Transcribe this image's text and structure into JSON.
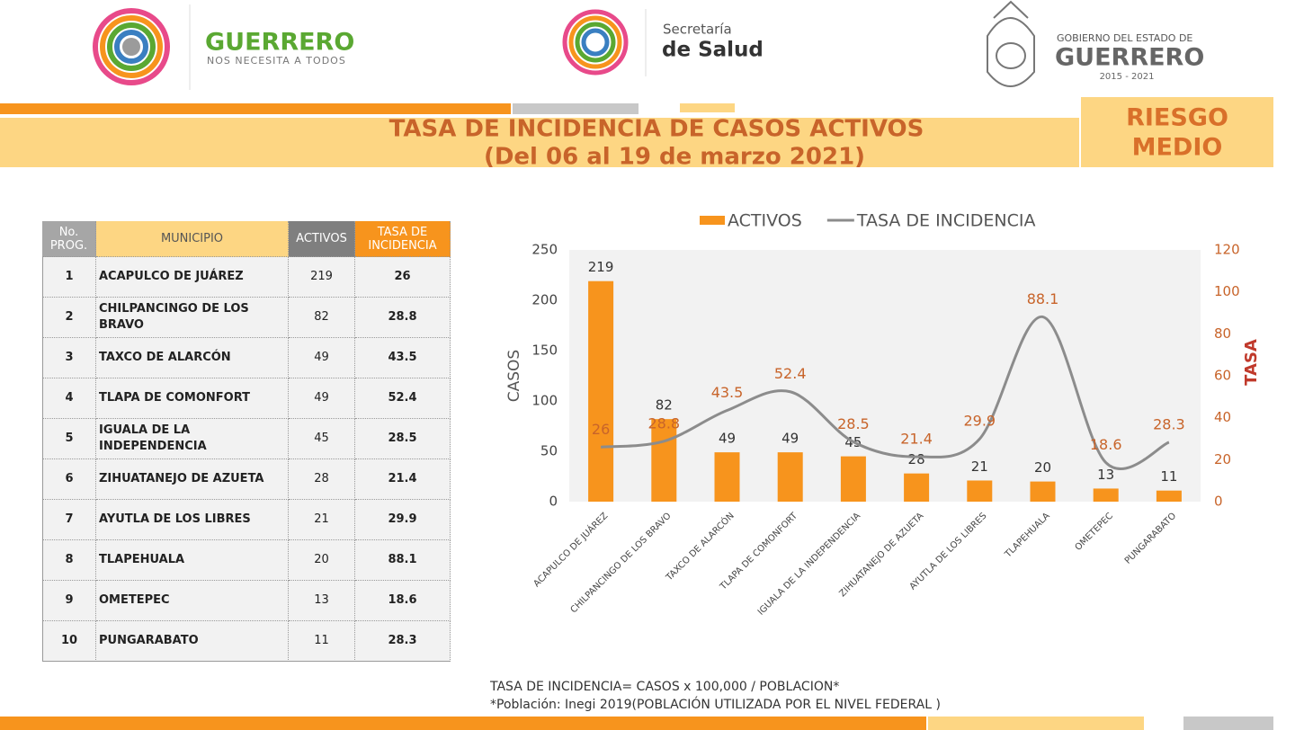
{
  "header": {
    "brand_title": "GUERRERO",
    "brand_subtitle": "NOS NECESITA A TODOS",
    "health_line1": "Secretaría",
    "health_line2": "de Salud",
    "gov_line1": "GOBIERNO DEL ESTADO DE",
    "gov_line2": "GUERRERO",
    "gov_years": "2015 - 2021"
  },
  "title": {
    "line1": "TASA DE INCIDENCIA DE CASOS ACTIVOS",
    "line2": "(Del 06 al 19 de marzo 2021)"
  },
  "risk": {
    "line1": "RIESGO",
    "line2": "MEDIO"
  },
  "table": {
    "headers": [
      "No. PROG.",
      "MUNICIPIO",
      "ACTIVOS",
      "TASA DE INCIDENCIA"
    ],
    "rows": [
      [
        1,
        "ACAPULCO DE JUÁREZ",
        219,
        26
      ],
      [
        2,
        "CHILPANCINGO DE LOS BRAVO",
        82,
        28.8
      ],
      [
        3,
        "TAXCO DE ALARCÓN",
        49,
        43.5
      ],
      [
        4,
        "TLAPA DE COMONFORT",
        49,
        52.4
      ],
      [
        5,
        "IGUALA DE LA INDEPENDENCIA",
        45,
        28.5
      ],
      [
        6,
        "ZIHUATANEJO DE AZUETA",
        28,
        21.4
      ],
      [
        7,
        "AYUTLA DE LOS LIBRES",
        21,
        29.9
      ],
      [
        8,
        "TLAPEHUALA",
        20,
        88.1
      ],
      [
        9,
        "OMETEPEC",
        13,
        18.6
      ],
      [
        10,
        "PUNGARABATO",
        11,
        28.3
      ]
    ]
  },
  "chart_data": {
    "type": "combo",
    "categories": [
      "ACAPULCO DE JUÁREZ",
      "CHILPANCINGO DE LOS BRAVO",
      "TAXCO DE ALARCÓN",
      "TLAPA DE COMONFORT",
      "IGUALA DE LA INDEPENDENCIA",
      "ZIHUATANEJO DE AZUETA",
      "AYUTLA DE LOS LIBRES",
      "TLAPEHUALA",
      "OMETEPEC",
      "PUNGARABATO"
    ],
    "series": [
      {
        "name": "ACTIVOS",
        "color": "#f7941d",
        "values": [
          219,
          82,
          49,
          49,
          45,
          28,
          21,
          20,
          13,
          11
        ]
      },
      {
        "name": "TASA DE INCIDENCIA",
        "color": "#8c8c8c",
        "axis": "y2",
        "values": [
          26,
          28.8,
          43.5,
          52.4,
          28.5,
          21.4,
          29.9,
          88.1,
          18.6,
          28.3
        ]
      }
    ],
    "ylabel": "CASOS",
    "y2label": "TASA",
    "ylim": [
      0,
      250
    ],
    "yticks": [
      0,
      50,
      100,
      150,
      200,
      250
    ],
    "y2lim": [
      0,
      120
    ],
    "y2ticks": [
      0,
      20,
      40,
      60,
      80,
      100,
      120
    ],
    "legend": "top"
  },
  "footer": {
    "formula": "TASA DE INCIDENCIA= CASOS x 100,000 / POBLACION*",
    "source": "*Población: Inegi 2019(POBLACIÓN UTILIZADA POR EL NIVEL FEDERAL )"
  }
}
